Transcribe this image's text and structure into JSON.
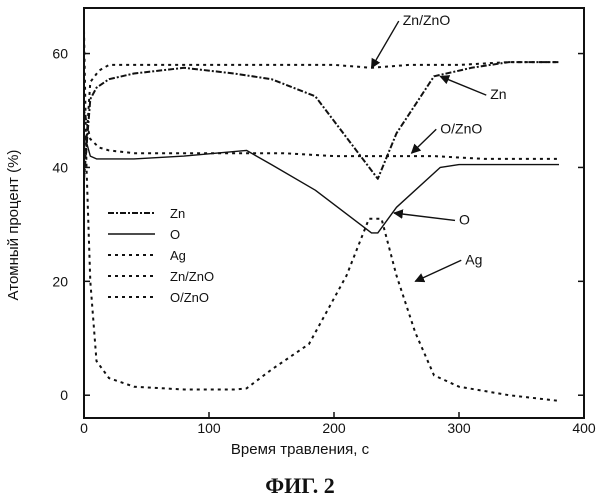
{
  "chart_data": {
    "type": "line",
    "xlabel": "Время травления, с",
    "ylabel": "Атомный процент (%)",
    "caption": "ФИГ. 2",
    "xlim": [
      0,
      400
    ],
    "ylim": [
      -4,
      68
    ],
    "xticks": [
      0,
      100,
      200,
      300,
      400
    ],
    "yticks": [
      0,
      20,
      40,
      60
    ],
    "grid": false,
    "legend_position": "middle-left",
    "series": [
      {
        "name": "Zn",
        "style": "dash-dot",
        "color": "#111111",
        "x": [
          0,
          5,
          10,
          20,
          40,
          80,
          120,
          150,
          185,
          235,
          250,
          280,
          310,
          340,
          380
        ],
        "y": [
          38,
          52,
          54,
          55.5,
          56.5,
          57.5,
          56.5,
          55.5,
          52.5,
          38,
          46,
          56,
          57.5,
          58.5,
          58.5
        ]
      },
      {
        "name": "O",
        "style": "solid",
        "color": "#111111",
        "x": [
          0,
          5,
          10,
          40,
          80,
          130,
          150,
          185,
          230,
          235,
          250,
          285,
          300,
          340,
          380
        ],
        "y": [
          46,
          42,
          41.5,
          41.5,
          42,
          43,
          40.5,
          36,
          28.5,
          28.5,
          33,
          40,
          40.5,
          40.5,
          40.5
        ]
      },
      {
        "name": "Ag",
        "style": "dotted",
        "color": "#111111",
        "x": [
          0,
          2,
          5,
          10,
          20,
          40,
          80,
          100,
          120,
          130,
          150,
          180,
          210,
          228,
          238,
          250,
          265,
          280,
          300,
          340,
          380
        ],
        "y": [
          64,
          40,
          20,
          6,
          3,
          1.5,
          1,
          1,
          1,
          1.2,
          4.5,
          9,
          21,
          31,
          31,
          21,
          11,
          3.5,
          1.5,
          0,
          -1
        ]
      },
      {
        "name": "Zn/ZnO",
        "style": "dotted",
        "color": "#111111",
        "x": [
          0,
          5,
          12,
          20,
          40,
          80,
          120,
          160,
          200,
          230,
          260,
          300,
          340,
          380
        ],
        "y": [
          38,
          55,
          57,
          58,
          58,
          58,
          58,
          58,
          58,
          57.5,
          58,
          58,
          58.5,
          58.5
        ]
      },
      {
        "name": "O/ZnO",
        "style": "dotted",
        "color": "#111111",
        "x": [
          0,
          5,
          12,
          20,
          40,
          80,
          120,
          160,
          200,
          240,
          280,
          320,
          380
        ],
        "y": [
          50,
          45,
          43.5,
          43,
          42.5,
          42.5,
          42.5,
          42.5,
          42,
          42,
          42,
          41.5,
          41.5
        ]
      }
    ],
    "annotations": [
      {
        "text": "Zn/ZnO",
        "arrow_to": [
          230,
          57.5
        ],
        "label_at": [
          255,
          65
        ]
      },
      {
        "text": "Zn",
        "arrow_to": [
          285,
          56
        ],
        "label_at": [
          325,
          52
        ]
      },
      {
        "text": "O/ZnO",
        "arrow_to": [
          262,
          42.5
        ],
        "label_at": [
          285,
          46
        ]
      },
      {
        "text": "O",
        "arrow_to": [
          248,
          32
        ],
        "label_at": [
          300,
          30
        ]
      },
      {
        "text": "Ag",
        "arrow_to": [
          265,
          20
        ],
        "label_at": [
          305,
          23
        ]
      }
    ]
  }
}
